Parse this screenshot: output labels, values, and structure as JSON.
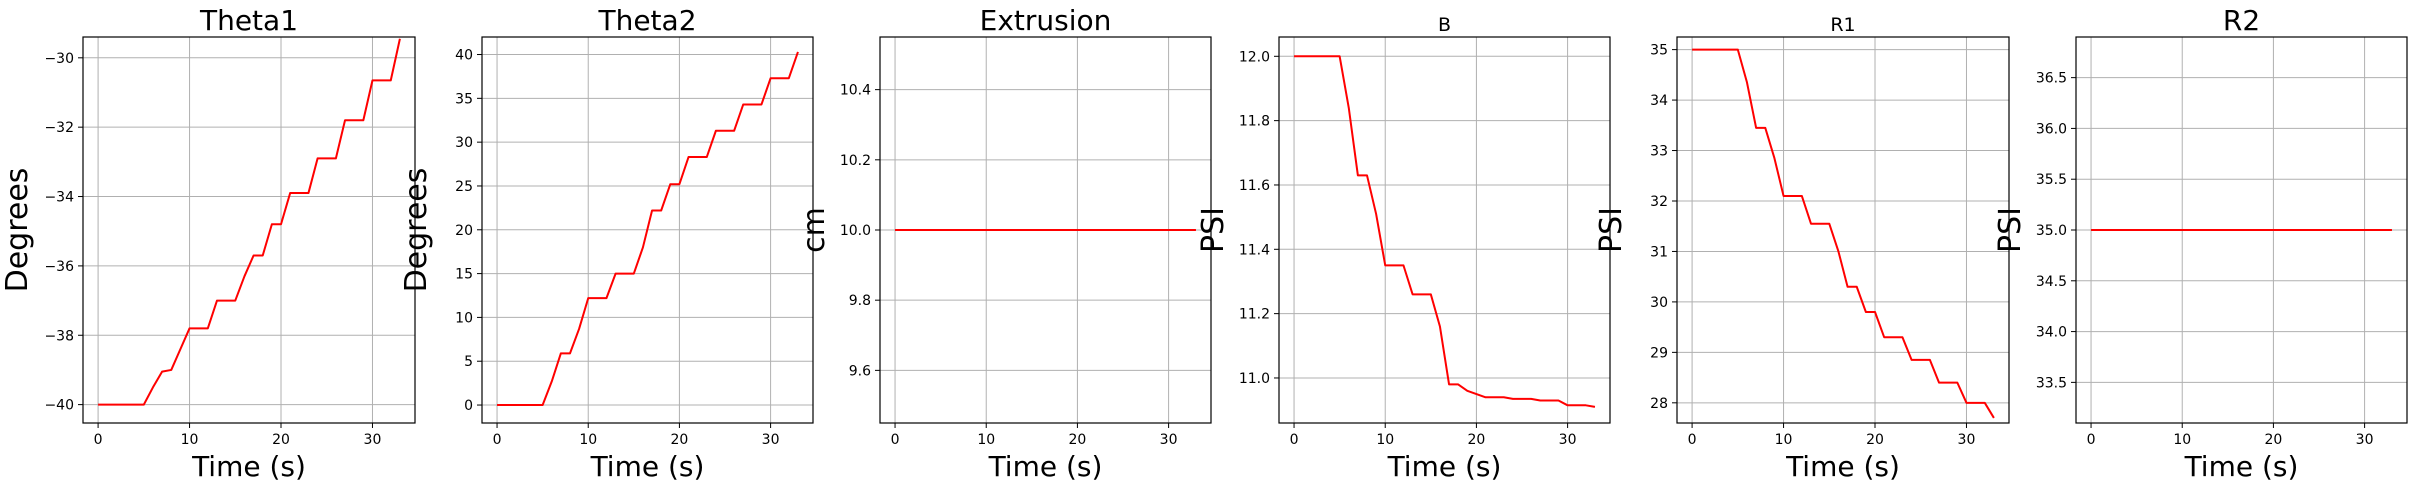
{
  "chart_data": [
    {
      "type": "line",
      "title": "Theta1",
      "title_size": "large",
      "xlabel": "Time (s)",
      "ylabel": "Degrees",
      "xlim": [
        -1.65,
        34.65
      ],
      "ylim": [
        -40.53,
        -29.4
      ],
      "xticks": [
        0,
        10,
        20,
        30
      ],
      "yticks": [
        -40,
        -38,
        -36,
        -34,
        -32,
        -30
      ],
      "ytick_labels": [
        "−40",
        "−38",
        "−36",
        "−34",
        "−32",
        "−30"
      ],
      "grid": true,
      "series": [
        {
          "color": "#ff0000",
          "x": [
            0,
            5,
            6,
            7,
            8,
            9,
            10,
            11,
            12,
            13,
            14,
            15,
            16,
            17,
            18,
            19,
            20,
            21,
            22,
            23,
            24,
            25,
            26,
            27,
            28,
            29,
            30,
            31,
            32,
            33
          ],
          "y": [
            -40,
            -40,
            -39.5,
            -39.05,
            -39.0,
            -38.4,
            -37.8,
            -37.8,
            -37.8,
            -37.0,
            -37.0,
            -37.0,
            -36.3,
            -35.7,
            -35.7,
            -34.8,
            -34.8,
            -33.9,
            -33.9,
            -33.9,
            -32.9,
            -32.9,
            -32.9,
            -31.8,
            -31.8,
            -31.8,
            -30.65,
            -30.65,
            -30.65,
            -29.45
          ]
        }
      ]
    },
    {
      "type": "line",
      "title": "Theta2",
      "title_size": "large",
      "xlabel": "Time (s)",
      "ylabel": "Degrees",
      "xlim": [
        -1.65,
        34.65
      ],
      "ylim": [
        -2.05,
        42.0
      ],
      "xticks": [
        0,
        10,
        20,
        30
      ],
      "yticks": [
        0,
        5,
        10,
        15,
        20,
        25,
        30,
        35,
        40
      ],
      "ytick_labels": [
        "0",
        "5",
        "10",
        "15",
        "20",
        "25",
        "30",
        "35",
        "40"
      ],
      "grid": true,
      "series": [
        {
          "color": "#ff0000",
          "x": [
            0,
            5,
            6,
            7,
            8,
            9,
            10,
            11,
            12,
            13,
            14,
            15,
            16,
            17,
            18,
            19,
            20,
            21,
            22,
            23,
            24,
            25,
            26,
            27,
            28,
            29,
            30,
            31,
            32,
            33
          ],
          "y": [
            0,
            0,
            2.7,
            5.9,
            5.9,
            8.7,
            12.2,
            12.2,
            12.2,
            15.0,
            15.0,
            15.0,
            18.0,
            22.2,
            22.2,
            25.2,
            25.2,
            28.3,
            28.3,
            28.3,
            31.3,
            31.3,
            31.3,
            34.3,
            34.3,
            34.3,
            37.3,
            37.3,
            37.3,
            40.3
          ]
        }
      ]
    },
    {
      "type": "line",
      "title": "Extrusion",
      "title_size": "large",
      "xlabel": "Time (s)",
      "ylabel": "cm",
      "xlim": [
        -1.65,
        34.65
      ],
      "ylim": [
        9.45,
        10.55
      ],
      "xticks": [
        0,
        10,
        20,
        30
      ],
      "yticks": [
        9.6,
        9.8,
        10.0,
        10.2,
        10.4
      ],
      "ytick_labels": [
        "9.6",
        "9.8",
        "10.0",
        "10.2",
        "10.4"
      ],
      "grid": true,
      "series": [
        {
          "color": "#ff0000",
          "x": [
            0,
            33
          ],
          "y": [
            10.0,
            10.0
          ]
        }
      ]
    },
    {
      "type": "line",
      "title": "B",
      "title_size": "small",
      "xlabel": "Time (s)",
      "ylabel": "PSI",
      "xlim": [
        -1.65,
        34.65
      ],
      "ylim": [
        10.86,
        12.06
      ],
      "xticks": [
        0,
        10,
        20,
        30
      ],
      "yticks": [
        11.0,
        11.2,
        11.4,
        11.6,
        11.8,
        12.0
      ],
      "ytick_labels": [
        "11.0",
        "11.2",
        "11.4",
        "11.6",
        "11.8",
        "12.0"
      ],
      "grid": true,
      "series": [
        {
          "color": "#ff0000",
          "x": [
            0,
            5,
            6,
            7,
            8,
            9,
            10,
            11,
            12,
            13,
            14,
            15,
            16,
            17,
            18,
            19,
            20,
            21,
            22,
            23,
            24,
            25,
            26,
            27,
            28,
            29,
            30,
            31,
            32,
            33
          ],
          "y": [
            12.0,
            12.0,
            11.84,
            11.63,
            11.63,
            11.51,
            11.35,
            11.35,
            11.35,
            11.26,
            11.26,
            11.26,
            11.16,
            10.98,
            10.98,
            10.96,
            10.95,
            10.94,
            10.94,
            10.94,
            10.935,
            10.935,
            10.935,
            10.93,
            10.93,
            10.93,
            10.915,
            10.915,
            10.915,
            10.91
          ]
        }
      ]
    },
    {
      "type": "line",
      "title": "R1",
      "title_size": "small",
      "xlabel": "Time (s)",
      "ylabel": "PSI",
      "xlim": [
        -1.65,
        34.65
      ],
      "ylim": [
        27.6,
        35.25
      ],
      "xticks": [
        0,
        10,
        20,
        30
      ],
      "yticks": [
        28,
        29,
        30,
        31,
        32,
        33,
        34,
        35
      ],
      "ytick_labels": [
        "28",
        "29",
        "30",
        "31",
        "32",
        "33",
        "34",
        "35"
      ],
      "grid": true,
      "series": [
        {
          "color": "#ff0000",
          "x": [
            0,
            5,
            6,
            7,
            8,
            9,
            10,
            11,
            12,
            13,
            14,
            15,
            16,
            17,
            18,
            19,
            20,
            21,
            22,
            23,
            24,
            25,
            26,
            27,
            28,
            29,
            30,
            31,
            32,
            33
          ],
          "y": [
            35.0,
            35.0,
            34.35,
            33.45,
            33.45,
            32.85,
            32.1,
            32.1,
            32.1,
            31.55,
            31.55,
            31.55,
            31.0,
            30.3,
            30.3,
            29.8,
            29.8,
            29.3,
            29.3,
            29.3,
            28.85,
            28.85,
            28.85,
            28.4,
            28.4,
            28.4,
            28.0,
            28.0,
            28.0,
            27.7
          ]
        }
      ]
    },
    {
      "type": "line",
      "title": "R2",
      "title_size": "large",
      "xlabel": "Time (s)",
      "ylabel": "PSI",
      "xlim": [
        -1.65,
        34.65
      ],
      "ylim": [
        33.1,
        36.9
      ],
      "xticks": [
        0,
        10,
        20,
        30
      ],
      "yticks": [
        33.5,
        34.0,
        34.5,
        35.0,
        35.5,
        36.0,
        36.5
      ],
      "ytick_labels": [
        "33.5",
        "34.0",
        "34.5",
        "35.0",
        "35.5",
        "36.0",
        "36.5"
      ],
      "grid": true,
      "series": [
        {
          "color": "#ff0000",
          "x": [
            0,
            33
          ],
          "y": [
            35.0,
            35.0
          ]
        }
      ]
    }
  ]
}
